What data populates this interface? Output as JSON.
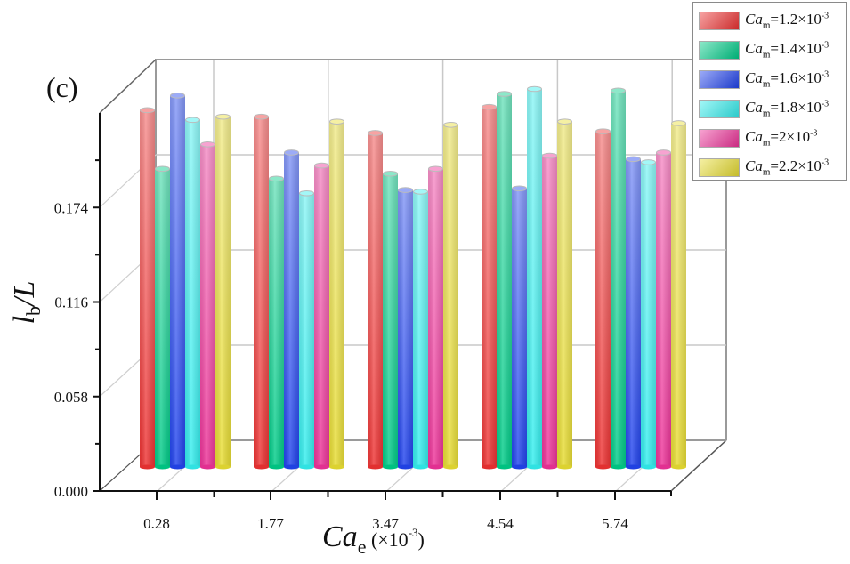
{
  "panel_label": "(c)",
  "chart_data": {
    "type": "bar",
    "style": "3d-cylinder",
    "title": "",
    "xlabel": "Ca_e (×10^-3)",
    "xlabel_parts": {
      "main": "Ca",
      "sub": "e",
      "suffix": " (×10",
      "sup": "-3",
      "close": ")"
    },
    "ylabel": "l_b/L",
    "ylabel_parts": {
      "main": "l",
      "sub": "b",
      "suffix": "/L"
    },
    "categories": [
      "0.28",
      "1.77",
      "3.47",
      "4.54",
      "5.74"
    ],
    "ylim": [
      0,
      0.232
    ],
    "yticks": [
      "0.000",
      "0.058",
      "0.116",
      "0.174"
    ],
    "ytick_values": [
      0,
      0.058,
      0.116,
      0.174
    ],
    "grid": true,
    "legend_position": "top-right",
    "series": [
      {
        "name": "Ca_m=1.2×10^-3",
        "label": {
          "pre": "Ca",
          "sub": "m",
          "val": "=1.2×10",
          "sup": "-3"
        },
        "color": "#ee3333",
        "values": [
          0.219,
          0.215,
          0.205,
          0.221,
          0.206
        ]
      },
      {
        "name": "Ca_m=1.4×10^-3",
        "label": {
          "pre": "Ca",
          "sub": "m",
          "val": "=1.4×10",
          "sup": "-3"
        },
        "color": "#00cc88",
        "values": [
          0.183,
          0.177,
          0.18,
          0.229,
          0.231
        ]
      },
      {
        "name": "Ca_m=1.6×10^-3",
        "label": {
          "pre": "Ca",
          "sub": "m",
          "val": "=1.6×10",
          "sup": "-3"
        },
        "color": "#2244ee",
        "values": [
          0.228,
          0.193,
          0.17,
          0.171,
          0.189
        ]
      },
      {
        "name": "Ca_m=1.8×10^-3",
        "label": {
          "pre": "Ca",
          "sub": "m",
          "val": "=1.8×10",
          "sup": "-3"
        },
        "color": "#33eeee",
        "values": [
          0.213,
          0.168,
          0.169,
          0.232,
          0.187
        ]
      },
      {
        "name": "Ca_m=2×10^-3",
        "label": {
          "pre": "Ca",
          "sub": "m",
          "val": "=2×10",
          "sup": "-3"
        },
        "color": "#ee3399",
        "values": [
          0.198,
          0.185,
          0.183,
          0.191,
          0.193
        ]
      },
      {
        "name": "Ca_m=2.2×10^-3",
        "label": {
          "pre": "Ca",
          "sub": "m",
          "val": "=2.2×10",
          "sup": "-3"
        },
        "color": "#e8dd33",
        "values": [
          0.215,
          0.212,
          0.21,
          0.212,
          0.211
        ]
      }
    ]
  }
}
